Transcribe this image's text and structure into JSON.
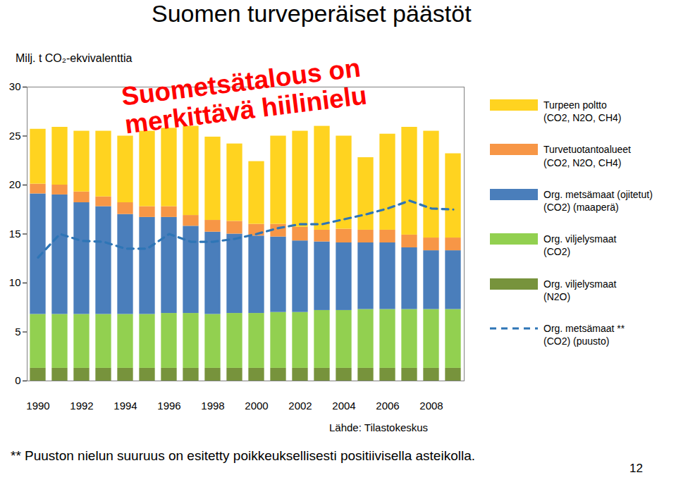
{
  "chart_data": {
    "type": "bar",
    "stacked": true,
    "title": "Suomen turveperäiset päästöt",
    "y_label": "Milj. t CO₂-ekvivalenttia",
    "annotation": "Suometsätalous on\nmerkittävä hiilinielu",
    "source": "Lähde: Tilastokeskus",
    "footnote": "** Puuston nielun suuruus on esitetty poikkeuksellisesti positiivisella asteikolla.",
    "page_number": 12,
    "x": [
      1990,
      1991,
      1992,
      1993,
      1994,
      1995,
      1996,
      1997,
      1998,
      1999,
      2000,
      2001,
      2002,
      2003,
      2004,
      2005,
      2006,
      2007,
      2008,
      2009
    ],
    "xlim": [
      1989.5,
      2009.5
    ],
    "xticks": [
      1990,
      1992,
      1994,
      1996,
      1998,
      2000,
      2002,
      2004,
      2006,
      2008
    ],
    "ylim": [
      0,
      30
    ],
    "yticks": [
      0,
      5,
      10,
      15,
      20,
      25,
      30
    ],
    "grid": false,
    "legend": "right",
    "series": [
      {
        "name": "Turpeen poltto\n(CO2, N2O, CH4)",
        "color": "#ffd320",
        "type": "bar",
        "values": [
          5.6,
          5.9,
          6.2,
          6.7,
          6.8,
          7.7,
          8.0,
          9.1,
          8.5,
          7.9,
          6.4,
          9.0,
          9.8,
          10.6,
          9.5,
          7.4,
          9.8,
          11.0,
          10.9,
          8.6
        ]
      },
      {
        "name": "Turvetuotantoalueet\n(CO2, N2O, CH4)",
        "color": "#f79646",
        "type": "bar",
        "values": [
          1.0,
          1.0,
          1.1,
          1.0,
          1.2,
          1.1,
          1.1,
          1.1,
          1.2,
          1.3,
          1.2,
          1.3,
          1.4,
          1.2,
          1.4,
          1.3,
          1.3,
          1.3,
          1.3,
          1.3
        ]
      },
      {
        "name": "Org. metsämaat (ojitetut)\n(CO2) (maaperä)",
        "color": "#4a7ebb",
        "type": "bar",
        "values": [
          12.3,
          12.2,
          11.4,
          11.0,
          10.2,
          9.9,
          9.8,
          8.9,
          8.4,
          8.1,
          7.9,
          7.7,
          7.3,
          7.0,
          6.9,
          6.8,
          6.8,
          6.3,
          6.0,
          6.0
        ]
      },
      {
        "name": "Org. viljelysmaat\n(CO2)",
        "color": "#92d050",
        "type": "bar",
        "values": [
          5.5,
          5.5,
          5.5,
          5.5,
          5.5,
          5.5,
          5.6,
          5.6,
          5.5,
          5.6,
          5.6,
          5.7,
          5.7,
          5.9,
          5.9,
          6.0,
          6.0,
          6.0,
          6.0,
          6.0
        ]
      },
      {
        "name": "Org. viljelysmaat\n(N2O)",
        "color": "#77933c",
        "type": "bar",
        "values": [
          1.3,
          1.3,
          1.3,
          1.3,
          1.3,
          1.3,
          1.3,
          1.3,
          1.3,
          1.3,
          1.3,
          1.3,
          1.3,
          1.3,
          1.3,
          1.3,
          1.3,
          1.3,
          1.3,
          1.3
        ]
      },
      {
        "name": "Org. metsämaat **\n(CO2) (puusto)",
        "color": "#2e75b6",
        "type": "line",
        "line_style": "dashed",
        "values": [
          12.6,
          15.0,
          14.3,
          14.2,
          13.5,
          13.5,
          15.0,
          14.2,
          14.2,
          14.5,
          15.0,
          15.6,
          16.0,
          16.0,
          16.5,
          17.0,
          17.6,
          18.4,
          17.6,
          17.5
        ]
      }
    ]
  }
}
